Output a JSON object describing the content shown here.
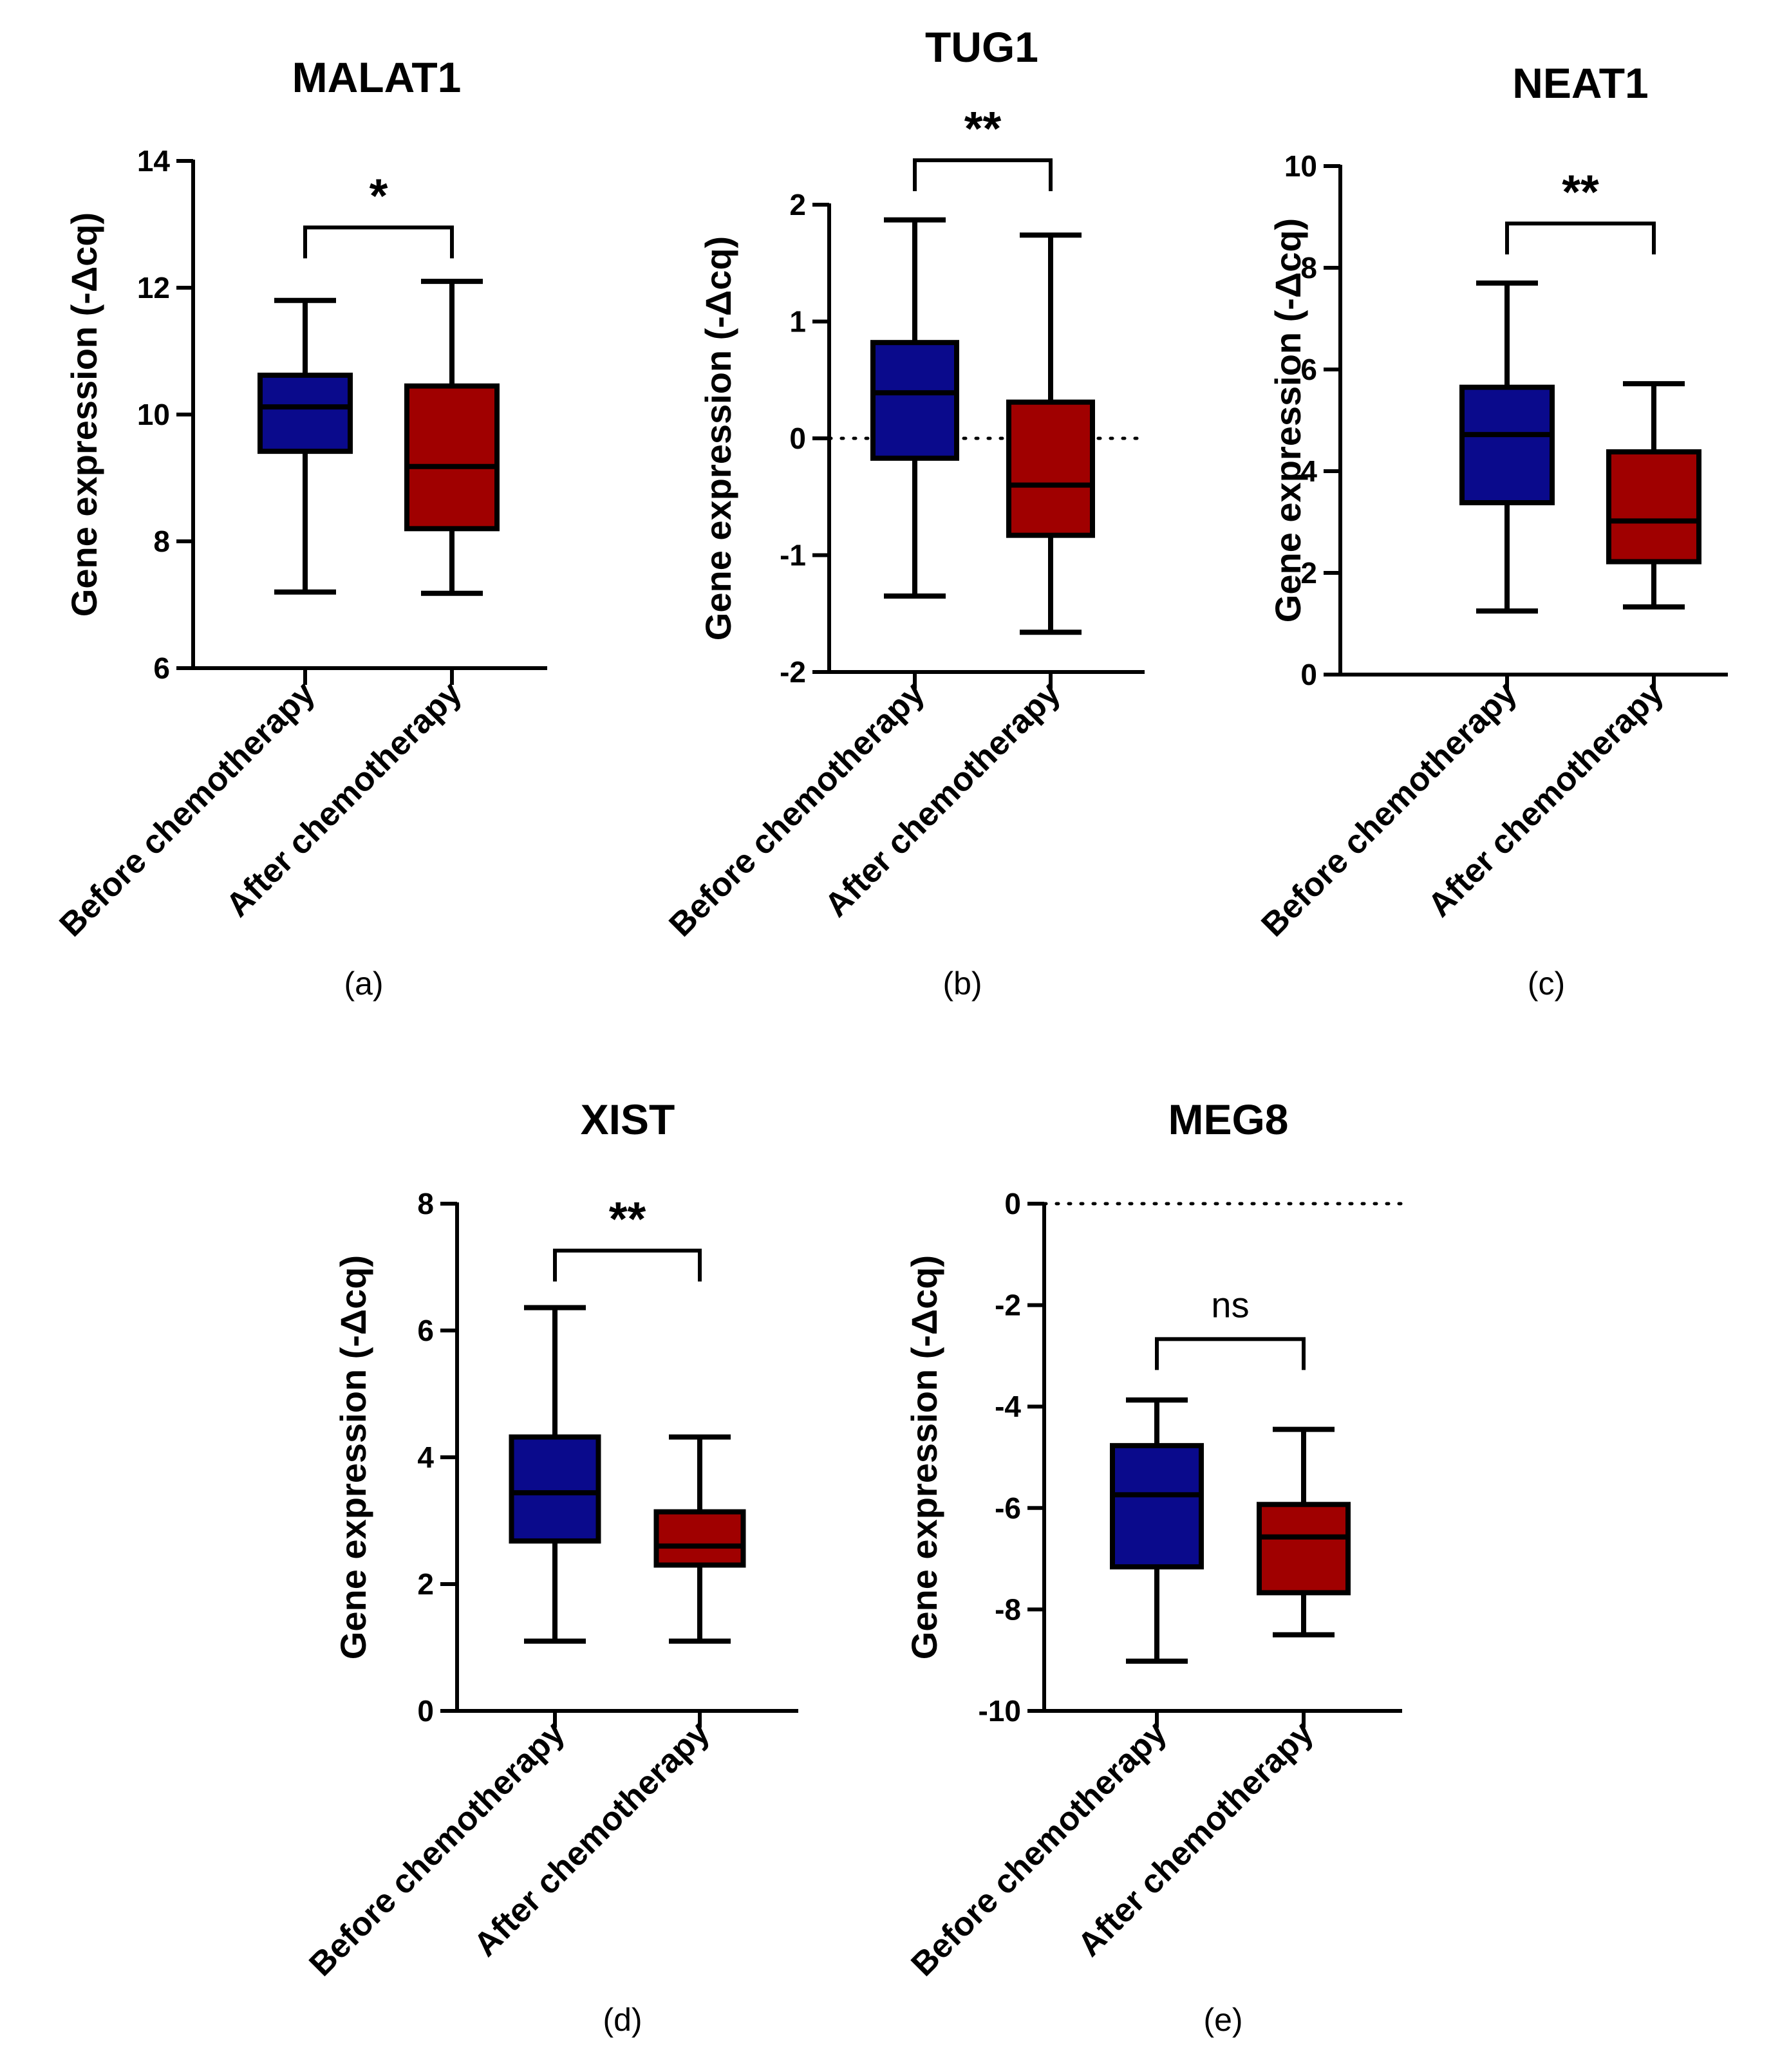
{
  "figure": {
    "box_colors": [
      "#0a0a8c",
      "#a00000"
    ],
    "line_color": "#000000"
  },
  "chart_data": [
    {
      "type": "box",
      "panel_label": "(a)",
      "title": "MALAT1",
      "ylabel": "Gene expression (-Δcq)",
      "xlabel": "",
      "ylim": [
        6,
        14
      ],
      "yticks": [
        6,
        8,
        10,
        12,
        14
      ],
      "categories": [
        "Before chemotherapy",
        "After chemotherapy"
      ],
      "series": [
        {
          "name": "Before chemotherapy",
          "min": 7.2,
          "q1": 9.42,
          "median": 10.12,
          "q3": 10.62,
          "max": 11.8
        },
        {
          "name": "After chemotherapy",
          "min": 7.18,
          "q1": 8.2,
          "median": 9.18,
          "q3": 10.45,
          "max": 12.1
        }
      ],
      "zero_line": false,
      "significance": {
        "label": "*",
        "bracket_y": 12.95
      }
    },
    {
      "type": "box",
      "panel_label": "(b)",
      "title": "TUG1",
      "ylabel": "Gene expression (-Δcq)",
      "xlabel": "",
      "ylim": [
        -2,
        2
      ],
      "yticks": [
        -2,
        -1,
        0,
        1,
        2
      ],
      "categories": [
        "Before chemotherapy",
        "After chemotherapy"
      ],
      "series": [
        {
          "name": "Before chemotherapy",
          "min": -1.35,
          "q1": -0.17,
          "median": 0.39,
          "q3": 0.82,
          "max": 1.87
        },
        {
          "name": "After chemotherapy",
          "min": -1.66,
          "q1": -0.83,
          "median": -0.4,
          "q3": 0.31,
          "max": 1.74
        }
      ],
      "zero_line": true,
      "significance": {
        "label": "**",
        "bracket_y": 2.38
      }
    },
    {
      "type": "box",
      "panel_label": "(c)",
      "title": "NEAT1",
      "ylabel": "Gene expression (-Δcq)",
      "xlabel": "",
      "ylim": [
        0,
        10
      ],
      "yticks": [
        0,
        2,
        4,
        6,
        8,
        10
      ],
      "categories": [
        "Before chemotherapy",
        "After chemotherapy"
      ],
      "series": [
        {
          "name": "Before chemotherapy",
          "min": 1.25,
          "q1": 3.38,
          "median": 4.72,
          "q3": 5.65,
          "max": 7.7
        },
        {
          "name": "After chemotherapy",
          "min": 1.33,
          "q1": 2.22,
          "median": 3.02,
          "q3": 4.38,
          "max": 5.72
        }
      ],
      "zero_line": false,
      "significance": {
        "label": "**",
        "bracket_y": 8.87
      }
    },
    {
      "type": "box",
      "panel_label": "(d)",
      "title": "XIST",
      "ylabel": "Gene expression (-Δcq)",
      "xlabel": "",
      "ylim": [
        0,
        8
      ],
      "yticks": [
        0,
        2,
        4,
        6,
        8
      ],
      "categories": [
        "Before chemotherapy",
        "After chemotherapy"
      ],
      "series": [
        {
          "name": "Before chemotherapy",
          "min": 1.1,
          "q1": 2.68,
          "median": 3.44,
          "q3": 4.32,
          "max": 6.36
        },
        {
          "name": "After chemotherapy",
          "min": 1.1,
          "q1": 2.3,
          "median": 2.6,
          "q3": 3.14,
          "max": 4.32
        }
      ],
      "zero_line": false,
      "significance": {
        "label": "**",
        "bracket_y": 7.26
      }
    },
    {
      "type": "box",
      "panel_label": "(e)",
      "title": "MEG8",
      "ylabel": "Gene expression (-Δcq)",
      "xlabel": "",
      "ylim": [
        -10,
        0
      ],
      "yticks": [
        -10,
        -8,
        -6,
        -4,
        -2,
        0
      ],
      "categories": [
        "Before chemotherapy",
        "After chemotherapy"
      ],
      "series": [
        {
          "name": "Before chemotherapy",
          "min": -9.02,
          "q1": -7.16,
          "median": -5.74,
          "q3": -4.77,
          "max": -3.87
        },
        {
          "name": "After chemotherapy",
          "min": -8.5,
          "q1": -7.67,
          "median": -6.57,
          "q3": -5.93,
          "max": -4.45
        }
      ],
      "zero_line": true,
      "significance": {
        "label": "ns",
        "bracket_y": -2.67
      }
    }
  ]
}
